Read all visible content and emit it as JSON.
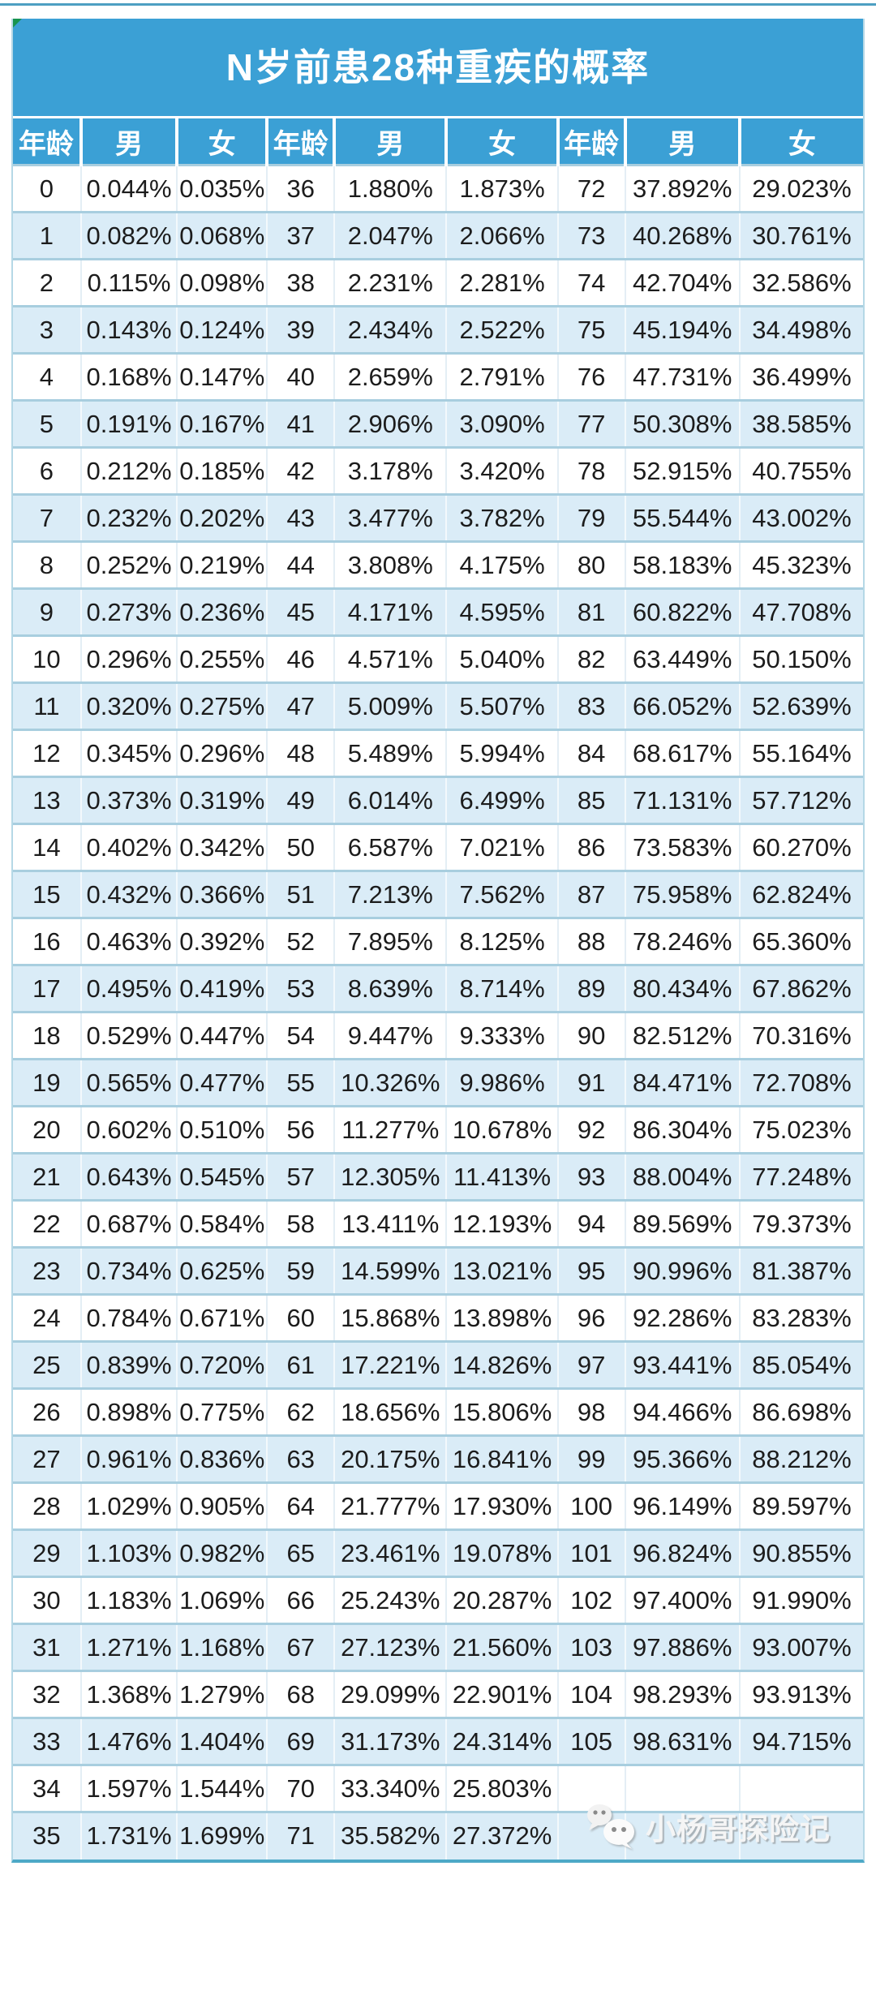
{
  "title": "N岁前患28种重疾的概率",
  "columns": [
    "年龄",
    "男",
    "女",
    "年龄",
    "男",
    "女",
    "年龄",
    "男",
    "女"
  ],
  "rows": [
    [
      "0",
      "0.044%",
      "0.035%",
      "36",
      "1.880%",
      "1.873%",
      "72",
      "37.892%",
      "29.023%"
    ],
    [
      "1",
      "0.082%",
      "0.068%",
      "37",
      "2.047%",
      "2.066%",
      "73",
      "40.268%",
      "30.761%"
    ],
    [
      "2",
      "0.115%",
      "0.098%",
      "38",
      "2.231%",
      "2.281%",
      "74",
      "42.704%",
      "32.586%"
    ],
    [
      "3",
      "0.143%",
      "0.124%",
      "39",
      "2.434%",
      "2.522%",
      "75",
      "45.194%",
      "34.498%"
    ],
    [
      "4",
      "0.168%",
      "0.147%",
      "40",
      "2.659%",
      "2.791%",
      "76",
      "47.731%",
      "36.499%"
    ],
    [
      "5",
      "0.191%",
      "0.167%",
      "41",
      "2.906%",
      "3.090%",
      "77",
      "50.308%",
      "38.585%"
    ],
    [
      "6",
      "0.212%",
      "0.185%",
      "42",
      "3.178%",
      "3.420%",
      "78",
      "52.915%",
      "40.755%"
    ],
    [
      "7",
      "0.232%",
      "0.202%",
      "43",
      "3.477%",
      "3.782%",
      "79",
      "55.544%",
      "43.002%"
    ],
    [
      "8",
      "0.252%",
      "0.219%",
      "44",
      "3.808%",
      "4.175%",
      "80",
      "58.183%",
      "45.323%"
    ],
    [
      "9",
      "0.273%",
      "0.236%",
      "45",
      "4.171%",
      "4.595%",
      "81",
      "60.822%",
      "47.708%"
    ],
    [
      "10",
      "0.296%",
      "0.255%",
      "46",
      "4.571%",
      "5.040%",
      "82",
      "63.449%",
      "50.150%"
    ],
    [
      "11",
      "0.320%",
      "0.275%",
      "47",
      "5.009%",
      "5.507%",
      "83",
      "66.052%",
      "52.639%"
    ],
    [
      "12",
      "0.345%",
      "0.296%",
      "48",
      "5.489%",
      "5.994%",
      "84",
      "68.617%",
      "55.164%"
    ],
    [
      "13",
      "0.373%",
      "0.319%",
      "49",
      "6.014%",
      "6.499%",
      "85",
      "71.131%",
      "57.712%"
    ],
    [
      "14",
      "0.402%",
      "0.342%",
      "50",
      "6.587%",
      "7.021%",
      "86",
      "73.583%",
      "60.270%"
    ],
    [
      "15",
      "0.432%",
      "0.366%",
      "51",
      "7.213%",
      "7.562%",
      "87",
      "75.958%",
      "62.824%"
    ],
    [
      "16",
      "0.463%",
      "0.392%",
      "52",
      "7.895%",
      "8.125%",
      "88",
      "78.246%",
      "65.360%"
    ],
    [
      "17",
      "0.495%",
      "0.419%",
      "53",
      "8.639%",
      "8.714%",
      "89",
      "80.434%",
      "67.862%"
    ],
    [
      "18",
      "0.529%",
      "0.447%",
      "54",
      "9.447%",
      "9.333%",
      "90",
      "82.512%",
      "70.316%"
    ],
    [
      "19",
      "0.565%",
      "0.477%",
      "55",
      "10.326%",
      "9.986%",
      "91",
      "84.471%",
      "72.708%"
    ],
    [
      "20",
      "0.602%",
      "0.510%",
      "56",
      "11.277%",
      "10.678%",
      "92",
      "86.304%",
      "75.023%"
    ],
    [
      "21",
      "0.643%",
      "0.545%",
      "57",
      "12.305%",
      "11.413%",
      "93",
      "88.004%",
      "77.248%"
    ],
    [
      "22",
      "0.687%",
      "0.584%",
      "58",
      "13.411%",
      "12.193%",
      "94",
      "89.569%",
      "79.373%"
    ],
    [
      "23",
      "0.734%",
      "0.625%",
      "59",
      "14.599%",
      "13.021%",
      "95",
      "90.996%",
      "81.387%"
    ],
    [
      "24",
      "0.784%",
      "0.671%",
      "60",
      "15.868%",
      "13.898%",
      "96",
      "92.286%",
      "83.283%"
    ],
    [
      "25",
      "0.839%",
      "0.720%",
      "61",
      "17.221%",
      "14.826%",
      "97",
      "93.441%",
      "85.054%"
    ],
    [
      "26",
      "0.898%",
      "0.775%",
      "62",
      "18.656%",
      "15.806%",
      "98",
      "94.466%",
      "86.698%"
    ],
    [
      "27",
      "0.961%",
      "0.836%",
      "63",
      "20.175%",
      "16.841%",
      "99",
      "95.366%",
      "88.212%"
    ],
    [
      "28",
      "1.029%",
      "0.905%",
      "64",
      "21.777%",
      "17.930%",
      "100",
      "96.149%",
      "89.597%"
    ],
    [
      "29",
      "1.103%",
      "0.982%",
      "65",
      "23.461%",
      "19.078%",
      "101",
      "96.824%",
      "90.855%"
    ],
    [
      "30",
      "1.183%",
      "1.069%",
      "66",
      "25.243%",
      "20.287%",
      "102",
      "97.400%",
      "91.990%"
    ],
    [
      "31",
      "1.271%",
      "1.168%",
      "67",
      "27.123%",
      "21.560%",
      "103",
      "97.886%",
      "93.007%"
    ],
    [
      "32",
      "1.368%",
      "1.279%",
      "68",
      "29.099%",
      "22.901%",
      "104",
      "98.293%",
      "93.913%"
    ],
    [
      "33",
      "1.476%",
      "1.404%",
      "69",
      "31.173%",
      "24.314%",
      "105",
      "98.631%",
      "94.715%"
    ],
    [
      "34",
      "1.597%",
      "1.544%",
      "70",
      "33.340%",
      "25.803%",
      "",
      "",
      ""
    ],
    [
      "35",
      "1.731%",
      "1.699%",
      "71",
      "35.582%",
      "27.372%",
      "",
      "",
      ""
    ]
  ],
  "watermark": {
    "icon": "wechat-icon",
    "text": "小杨哥探险记"
  },
  "colors": {
    "header_blue": "#3BA0D5",
    "alt_row": "#DAECF7",
    "grid_line": "#A8CEDF",
    "outer_border": "#4DA9C7",
    "corner_green": "#17934F",
    "text": "#1C1C1C"
  }
}
